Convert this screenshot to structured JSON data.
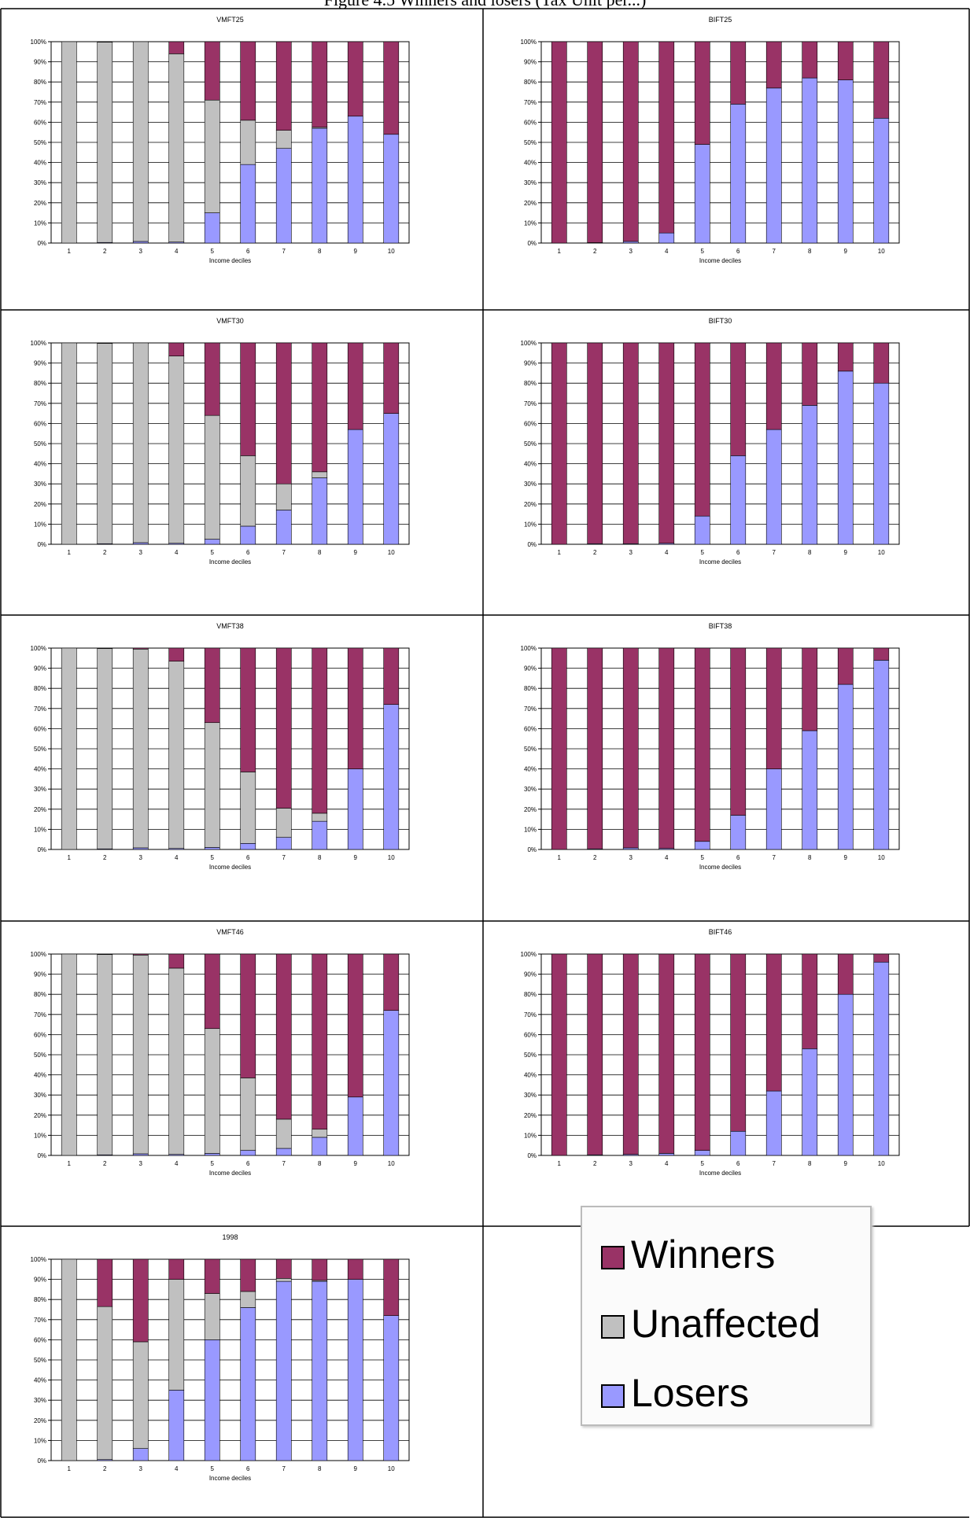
{
  "page_title": "Figure 4.5 Winners and losers (Tax Unit per...)",
  "legend": [
    {
      "label": "Winners",
      "color": "#993366"
    },
    {
      "label": "Unaffected",
      "color": "#c0c0c0"
    },
    {
      "label": "Losers",
      "color": "#9999ff"
    }
  ],
  "colors": {
    "winners": "#993366",
    "unaffected": "#c0c0c0",
    "losers": "#9999ff"
  },
  "chart_data": [
    {
      "type": "bar",
      "stacked": true,
      "title": "VMFT25",
      "xlabel": "Income deciles",
      "ylim": [
        0,
        100
      ],
      "categories": [
        "1",
        "2",
        "3",
        "4",
        "5",
        "6",
        "7",
        "8",
        "9",
        "10"
      ],
      "series": [
        {
          "name": "Losers",
          "values": [
            0,
            0.3,
            0.8,
            0.5,
            15,
            39,
            47,
            57,
            63,
            54
          ]
        },
        {
          "name": "Unaffected",
          "values": [
            100,
            99.5,
            99.2,
            93.5,
            56,
            22,
            9,
            0.5,
            0,
            0
          ]
        },
        {
          "name": "Winners",
          "values": [
            0,
            0.2,
            0,
            6,
            29,
            39,
            44,
            42.5,
            37,
            46
          ]
        }
      ]
    },
    {
      "type": "bar",
      "stacked": true,
      "title": "BIFT25",
      "xlabel": "Income deciles",
      "ylim": [
        0,
        100
      ],
      "categories": [
        "1",
        "2",
        "3",
        "4",
        "5",
        "6",
        "7",
        "8",
        "9",
        "10"
      ],
      "series": [
        {
          "name": "Losers",
          "values": [
            0,
            0.2,
            0.8,
            5,
            49,
            69,
            77,
            82,
            81,
            62
          ]
        },
        {
          "name": "Unaffected",
          "values": [
            0,
            0,
            0,
            0,
            0,
            0,
            0,
            0,
            0,
            0
          ]
        },
        {
          "name": "Winners",
          "values": [
            100,
            99.8,
            99.2,
            95,
            51,
            31,
            23,
            18,
            19,
            38
          ]
        }
      ]
    },
    {
      "type": "bar",
      "stacked": true,
      "title": "VMFT30",
      "xlabel": "Income deciles",
      "ylim": [
        0,
        100
      ],
      "categories": [
        "1",
        "2",
        "3",
        "4",
        "5",
        "6",
        "7",
        "8",
        "9",
        "10"
      ],
      "series": [
        {
          "name": "Losers",
          "values": [
            0,
            0.3,
            0.8,
            0.5,
            2.5,
            9,
            17,
            33,
            57,
            65
          ]
        },
        {
          "name": "Unaffected",
          "values": [
            100,
            99.5,
            99.2,
            93,
            61.5,
            35,
            13,
            3,
            0,
            0
          ]
        },
        {
          "name": "Winners",
          "values": [
            0,
            0.2,
            0,
            6.5,
            36,
            56,
            70,
            64,
            43,
            35
          ]
        }
      ]
    },
    {
      "type": "bar",
      "stacked": true,
      "title": "BIFT30",
      "xlabel": "Income deciles",
      "ylim": [
        0,
        100
      ],
      "categories": [
        "1",
        "2",
        "3",
        "4",
        "5",
        "6",
        "7",
        "8",
        "9",
        "10"
      ],
      "series": [
        {
          "name": "Losers",
          "values": [
            0,
            0.3,
            0.3,
            0.5,
            14,
            44,
            57,
            69,
            86,
            80
          ]
        },
        {
          "name": "Unaffected",
          "values": [
            0,
            0,
            0,
            0,
            0,
            0,
            0,
            0,
            0,
            0
          ]
        },
        {
          "name": "Winners",
          "values": [
            100,
            99.7,
            99.7,
            99.5,
            86,
            56,
            43,
            31,
            14,
            20
          ]
        }
      ]
    },
    {
      "type": "bar",
      "stacked": true,
      "title": "VMFT38",
      "xlabel": "Income deciles",
      "ylim": [
        0,
        100
      ],
      "categories": [
        "1",
        "2",
        "3",
        "4",
        "5",
        "6",
        "7",
        "8",
        "9",
        "10"
      ],
      "series": [
        {
          "name": "Losers",
          "values": [
            0,
            0.3,
            0.8,
            0.5,
            1,
            3,
            6,
            14,
            40,
            72
          ]
        },
        {
          "name": "Unaffected",
          "values": [
            100,
            99.5,
            98.7,
            93,
            62,
            35.5,
            14.5,
            4,
            0,
            0
          ]
        },
        {
          "name": "Winners",
          "values": [
            0,
            0.2,
            0.5,
            6.5,
            37,
            61.5,
            79.5,
            82,
            60,
            28
          ]
        }
      ]
    },
    {
      "type": "bar",
      "stacked": true,
      "title": "BIFT38",
      "xlabel": "Income deciles",
      "ylim": [
        0,
        100
      ],
      "categories": [
        "1",
        "2",
        "3",
        "4",
        "5",
        "6",
        "7",
        "8",
        "9",
        "10"
      ],
      "series": [
        {
          "name": "Losers",
          "values": [
            0,
            0.3,
            0.8,
            0.5,
            4,
            17,
            40,
            59,
            82,
            94
          ]
        },
        {
          "name": "Unaffected",
          "values": [
            0,
            0,
            0,
            0,
            0,
            0,
            0,
            0,
            0,
            0
          ]
        },
        {
          "name": "Winners",
          "values": [
            100,
            99.7,
            99.2,
            99.5,
            96,
            83,
            60,
            41,
            18,
            6
          ]
        }
      ]
    },
    {
      "type": "bar",
      "stacked": true,
      "title": "VMFT46",
      "xlabel": "Income deciles",
      "ylim": [
        0,
        100
      ],
      "categories": [
        "1",
        "2",
        "3",
        "4",
        "5",
        "6",
        "7",
        "8",
        "9",
        "10"
      ],
      "series": [
        {
          "name": "Losers",
          "values": [
            0,
            0.3,
            0.8,
            0.5,
            1,
            2.5,
            3.5,
            9,
            29,
            72
          ]
        },
        {
          "name": "Unaffected",
          "values": [
            100,
            99.5,
            98.7,
            92.5,
            62,
            36,
            14.5,
            4,
            0,
            0
          ]
        },
        {
          "name": "Winners",
          "values": [
            0,
            0.2,
            0.5,
            7,
            37,
            61.5,
            82,
            87,
            71,
            28
          ]
        }
      ]
    },
    {
      "type": "bar",
      "stacked": true,
      "title": "BIFT46",
      "xlabel": "Income deciles",
      "ylim": [
        0,
        100
      ],
      "categories": [
        "1",
        "2",
        "3",
        "4",
        "5",
        "6",
        "7",
        "8",
        "9",
        "10"
      ],
      "series": [
        {
          "name": "Losers",
          "values": [
            0,
            0.3,
            0.5,
            1,
            2.5,
            12,
            32,
            53,
            80,
            96
          ]
        },
        {
          "name": "Unaffected",
          "values": [
            0,
            0,
            0,
            0,
            0,
            0,
            0,
            0,
            0,
            0
          ]
        },
        {
          "name": "Winners",
          "values": [
            100,
            99.7,
            99.5,
            99,
            97.5,
            88,
            68,
            47,
            20,
            4
          ]
        }
      ]
    },
    {
      "type": "bar",
      "stacked": true,
      "title": "1998",
      "xlabel": "Income deciles",
      "ylim": [
        0,
        100
      ],
      "categories": [
        "1",
        "2",
        "3",
        "4",
        "5",
        "6",
        "7",
        "8",
        "9",
        "10"
      ],
      "series": [
        {
          "name": "Losers",
          "values": [
            0,
            0.5,
            6,
            35,
            60,
            76,
            89,
            89,
            90,
            72
          ]
        },
        {
          "name": "Unaffected",
          "values": [
            100,
            76,
            53,
            55,
            23,
            8,
            1.5,
            0.5,
            0,
            0
          ]
        },
        {
          "name": "Winners",
          "values": [
            0,
            23.5,
            41,
            10,
            17,
            16,
            9.5,
            10.5,
            10,
            28
          ]
        }
      ]
    }
  ],
  "y_ticks": [
    "0%",
    "10%",
    "20%",
    "30%",
    "40%",
    "50%",
    "60%",
    "70%",
    "80%",
    "90%",
    "100%"
  ]
}
